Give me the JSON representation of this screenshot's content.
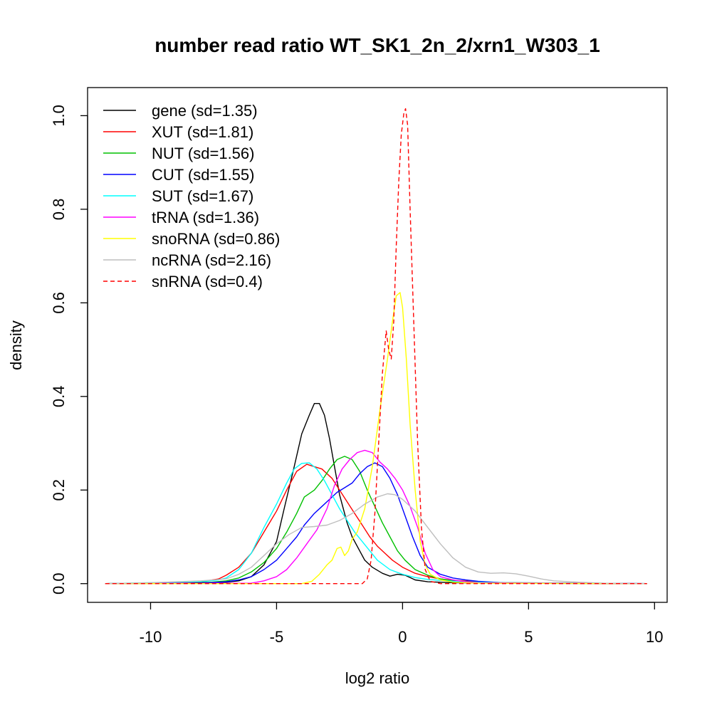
{
  "chart_data": {
    "type": "line",
    "title": "number read ratio WT_SK1_2n_2/xrn1_W303_1",
    "xlabel": "log2 ratio",
    "ylabel": "density",
    "xlim": [
      -12.5,
      10.5
    ],
    "ylim": [
      -0.04,
      1.06
    ],
    "xticks": [
      -10,
      -5,
      0,
      5,
      10
    ],
    "xtick_labels": [
      "-10",
      "-5",
      "0",
      "5",
      "10"
    ],
    "yticks": [
      0.0,
      0.2,
      0.4,
      0.6,
      0.8,
      1.0
    ],
    "ytick_labels": [
      "0.0",
      "0.2",
      "0.4",
      "0.6",
      "0.8",
      "1.0"
    ],
    "grid": false,
    "legend_position": "top-left",
    "series": [
      {
        "name": "gene (sd=1.35)",
        "color": "#000000",
        "dash": false,
        "points": [
          [
            -11.8,
            0
          ],
          [
            -9,
            0.002
          ],
          [
            -7,
            0.003
          ],
          [
            -6.5,
            0.006
          ],
          [
            -6,
            0.015
          ],
          [
            -5.5,
            0.04
          ],
          [
            -5,
            0.09
          ],
          [
            -4.7,
            0.16
          ],
          [
            -4.3,
            0.25
          ],
          [
            -4,
            0.32
          ],
          [
            -3.7,
            0.36
          ],
          [
            -3.5,
            0.385
          ],
          [
            -3.3,
            0.385
          ],
          [
            -3.1,
            0.36
          ],
          [
            -2.9,
            0.31
          ],
          [
            -2.7,
            0.25
          ],
          [
            -2.5,
            0.19
          ],
          [
            -2.2,
            0.13
          ],
          [
            -2,
            0.1
          ],
          [
            -1.7,
            0.07
          ],
          [
            -1.5,
            0.05
          ],
          [
            -1.2,
            0.035
          ],
          [
            -0.8,
            0.022
          ],
          [
            -0.5,
            0.016
          ],
          [
            -0.2,
            0.02
          ],
          [
            0.1,
            0.018
          ],
          [
            0.5,
            0.008
          ],
          [
            1,
            0.004
          ],
          [
            2,
            0.002
          ],
          [
            4,
            0.001
          ],
          [
            9.7,
            0
          ]
        ]
      },
      {
        "name": "XUT (sd=1.81)",
        "color": "#ff0000",
        "dash": false,
        "points": [
          [
            -11.8,
            0
          ],
          [
            -9,
            0.002
          ],
          [
            -8,
            0.004
          ],
          [
            -7.3,
            0.01
          ],
          [
            -7,
            0.018
          ],
          [
            -6.5,
            0.035
          ],
          [
            -6,
            0.065
          ],
          [
            -5.5,
            0.11
          ],
          [
            -5,
            0.155
          ],
          [
            -4.6,
            0.2
          ],
          [
            -4.2,
            0.24
          ],
          [
            -3.8,
            0.255
          ],
          [
            -3.5,
            0.25
          ],
          [
            -3.2,
            0.245
          ],
          [
            -2.8,
            0.225
          ],
          [
            -2.5,
            0.2
          ],
          [
            -2.2,
            0.175
          ],
          [
            -1.9,
            0.15
          ],
          [
            -1.6,
            0.125
          ],
          [
            -1.3,
            0.1
          ],
          [
            -1,
            0.08
          ],
          [
            -0.7,
            0.065
          ],
          [
            -0.4,
            0.05
          ],
          [
            0,
            0.035
          ],
          [
            0.5,
            0.022
          ],
          [
            1,
            0.015
          ],
          [
            1.5,
            0.01
          ],
          [
            2,
            0.007
          ],
          [
            3,
            0.004
          ],
          [
            4,
            0.002
          ],
          [
            6,
            0.001
          ],
          [
            9.7,
            0
          ]
        ]
      },
      {
        "name": "NUT (sd=1.56)",
        "color": "#00c000",
        "dash": false,
        "points": [
          [
            -11.8,
            0
          ],
          [
            -8,
            0.001
          ],
          [
            -7,
            0.006
          ],
          [
            -6.5,
            0.012
          ],
          [
            -6,
            0.025
          ],
          [
            -5.5,
            0.045
          ],
          [
            -5,
            0.075
          ],
          [
            -4.6,
            0.11
          ],
          [
            -4.2,
            0.15
          ],
          [
            -3.9,
            0.185
          ],
          [
            -3.5,
            0.2
          ],
          [
            -3.2,
            0.22
          ],
          [
            -2.9,
            0.245
          ],
          [
            -2.6,
            0.265
          ],
          [
            -2.3,
            0.272
          ],
          [
            -2,
            0.265
          ],
          [
            -1.7,
            0.24
          ],
          [
            -1.4,
            0.2
          ],
          [
            -1.1,
            0.165
          ],
          [
            -0.8,
            0.13
          ],
          [
            -0.5,
            0.1
          ],
          [
            -0.2,
            0.07
          ],
          [
            0.1,
            0.05
          ],
          [
            0.5,
            0.03
          ],
          [
            1,
            0.018
          ],
          [
            1.5,
            0.01
          ],
          [
            2,
            0.006
          ],
          [
            3,
            0.003
          ],
          [
            4,
            0.002
          ],
          [
            9.7,
            0
          ]
        ]
      },
      {
        "name": "CUT (sd=1.55)",
        "color": "#0000ff",
        "dash": false,
        "points": [
          [
            -11.8,
            0
          ],
          [
            -8,
            0.001
          ],
          [
            -7,
            0.004
          ],
          [
            -6.5,
            0.008
          ],
          [
            -6,
            0.015
          ],
          [
            -5.5,
            0.03
          ],
          [
            -5,
            0.05
          ],
          [
            -4.6,
            0.075
          ],
          [
            -4.2,
            0.1
          ],
          [
            -3.9,
            0.125
          ],
          [
            -3.5,
            0.15
          ],
          [
            -3.2,
            0.165
          ],
          [
            -2.9,
            0.18
          ],
          [
            -2.6,
            0.195
          ],
          [
            -2.3,
            0.205
          ],
          [
            -2,
            0.215
          ],
          [
            -1.7,
            0.235
          ],
          [
            -1.4,
            0.25
          ],
          [
            -1.1,
            0.258
          ],
          [
            -0.8,
            0.25
          ],
          [
            -0.5,
            0.225
          ],
          [
            -0.2,
            0.19
          ],
          [
            0.1,
            0.145
          ],
          [
            0.4,
            0.1
          ],
          [
            0.7,
            0.06
          ],
          [
            1,
            0.035
          ],
          [
            1.5,
            0.02
          ],
          [
            2,
            0.012
          ],
          [
            2.5,
            0.008
          ],
          [
            3,
            0.005
          ],
          [
            4,
            0.002
          ],
          [
            9.7,
            0
          ]
        ]
      },
      {
        "name": "SUT (sd=1.67)",
        "color": "#00ffff",
        "dash": false,
        "points": [
          [
            -11.8,
            0
          ],
          [
            -9,
            0.003
          ],
          [
            -8,
            0.004
          ],
          [
            -7.3,
            0.008
          ],
          [
            -7,
            0.012
          ],
          [
            -6.5,
            0.03
          ],
          [
            -6,
            0.065
          ],
          [
            -5.5,
            0.12
          ],
          [
            -5,
            0.17
          ],
          [
            -4.6,
            0.215
          ],
          [
            -4.3,
            0.245
          ],
          [
            -4,
            0.257
          ],
          [
            -3.7,
            0.258
          ],
          [
            -3.4,
            0.245
          ],
          [
            -3.1,
            0.22
          ],
          [
            -2.8,
            0.19
          ],
          [
            -2.5,
            0.16
          ],
          [
            -2.2,
            0.135
          ],
          [
            -1.9,
            0.11
          ],
          [
            -1.6,
            0.09
          ],
          [
            -1.3,
            0.07
          ],
          [
            -1,
            0.05
          ],
          [
            -0.5,
            0.03
          ],
          [
            0,
            0.02
          ],
          [
            0.5,
            0.013
          ],
          [
            1,
            0.009
          ],
          [
            2,
            0.005
          ],
          [
            3,
            0.003
          ],
          [
            4,
            0.002
          ],
          [
            9.7,
            0
          ]
        ]
      },
      {
        "name": "tRNA (sd=1.36)",
        "color": "#ff00ff",
        "dash": false,
        "points": [
          [
            -11.8,
            0
          ],
          [
            -6,
            0.001
          ],
          [
            -5.5,
            0.006
          ],
          [
            -5,
            0.015
          ],
          [
            -4.6,
            0.03
          ],
          [
            -4.2,
            0.055
          ],
          [
            -3.8,
            0.085
          ],
          [
            -3.4,
            0.115
          ],
          [
            -3,
            0.16
          ],
          [
            -2.7,
            0.21
          ],
          [
            -2.4,
            0.245
          ],
          [
            -2.1,
            0.265
          ],
          [
            -1.8,
            0.28
          ],
          [
            -1.5,
            0.285
          ],
          [
            -1.2,
            0.28
          ],
          [
            -0.9,
            0.26
          ],
          [
            -0.6,
            0.245
          ],
          [
            -0.3,
            0.225
          ],
          [
            0,
            0.2
          ],
          [
            0.3,
            0.165
          ],
          [
            0.6,
            0.12
          ],
          [
            0.9,
            0.065
          ],
          [
            1.2,
            0.03
          ],
          [
            1.5,
            0.015
          ],
          [
            2,
            0.008
          ],
          [
            2.5,
            0.004
          ],
          [
            3,
            0.002
          ],
          [
            9.7,
            0
          ]
        ]
      },
      {
        "name": "snoRNA (sd=0.86)",
        "color": "#ffff00",
        "dash": false,
        "points": [
          [
            -11.8,
            0
          ],
          [
            -4,
            0
          ],
          [
            -3.6,
            0.005
          ],
          [
            -3.3,
            0.02
          ],
          [
            -3,
            0.04
          ],
          [
            -2.8,
            0.05
          ],
          [
            -2.6,
            0.075
          ],
          [
            -2.45,
            0.078
          ],
          [
            -2.3,
            0.06
          ],
          [
            -2.15,
            0.07
          ],
          [
            -2,
            0.095
          ],
          [
            -1.8,
            0.11
          ],
          [
            -1.5,
            0.16
          ],
          [
            -1.2,
            0.25
          ],
          [
            -0.9,
            0.37
          ],
          [
            -0.6,
            0.48
          ],
          [
            -0.4,
            0.56
          ],
          [
            -0.25,
            0.615
          ],
          [
            -0.1,
            0.622
          ],
          [
            0,
            0.59
          ],
          [
            0.15,
            0.48
          ],
          [
            0.3,
            0.34
          ],
          [
            0.5,
            0.2
          ],
          [
            0.7,
            0.09
          ],
          [
            0.9,
            0.04
          ],
          [
            1.1,
            0.02
          ],
          [
            1.5,
            0.008
          ],
          [
            2,
            0.003
          ],
          [
            3,
            0.001
          ],
          [
            9.7,
            0
          ]
        ]
      },
      {
        "name": "ncRNA (sd=2.16)",
        "color": "#bebebe",
        "dash": false,
        "points": [
          [
            -11.8,
            0
          ],
          [
            -10,
            0.002
          ],
          [
            -9,
            0.004
          ],
          [
            -8,
            0.006
          ],
          [
            -7,
            0.01
          ],
          [
            -6.5,
            0.02
          ],
          [
            -6,
            0.035
          ],
          [
            -5.5,
            0.06
          ],
          [
            -5,
            0.085
          ],
          [
            -4.5,
            0.105
          ],
          [
            -4,
            0.12
          ],
          [
            -3.5,
            0.122
          ],
          [
            -3,
            0.125
          ],
          [
            -2.5,
            0.135
          ],
          [
            -2,
            0.15
          ],
          [
            -1.5,
            0.17
          ],
          [
            -1,
            0.185
          ],
          [
            -0.6,
            0.192
          ],
          [
            -0.3,
            0.19
          ],
          [
            0,
            0.18
          ],
          [
            0.5,
            0.155
          ],
          [
            1,
            0.12
          ],
          [
            1.5,
            0.085
          ],
          [
            2,
            0.055
          ],
          [
            2.5,
            0.035
          ],
          [
            3,
            0.025
          ],
          [
            3.5,
            0.022
          ],
          [
            4,
            0.023
          ],
          [
            4.5,
            0.021
          ],
          [
            5,
            0.016
          ],
          [
            5.5,
            0.01
          ],
          [
            6,
            0.006
          ],
          [
            7,
            0.003
          ],
          [
            8,
            0.001
          ],
          [
            9.7,
            0
          ]
        ]
      },
      {
        "name": "snRNA (sd=0.4)",
        "color": "#ff0000",
        "dash": true,
        "points": [
          [
            -11.8,
            0
          ],
          [
            -1.6,
            0
          ],
          [
            -1.4,
            0.01
          ],
          [
            -1.25,
            0.05
          ],
          [
            -1.1,
            0.15
          ],
          [
            -0.95,
            0.3
          ],
          [
            -0.8,
            0.45
          ],
          [
            -0.65,
            0.54
          ],
          [
            -0.55,
            0.5
          ],
          [
            -0.45,
            0.48
          ],
          [
            -0.35,
            0.56
          ],
          [
            -0.25,
            0.72
          ],
          [
            -0.15,
            0.86
          ],
          [
            -0.05,
            0.96
          ],
          [
            0.05,
            1.005
          ],
          [
            0.12,
            1.015
          ],
          [
            0.2,
            0.98
          ],
          [
            0.3,
            0.8
          ],
          [
            0.45,
            0.55
          ],
          [
            0.6,
            0.3
          ],
          [
            0.75,
            0.12
          ],
          [
            0.9,
            0.03
          ],
          [
            1.1,
            0.005
          ],
          [
            1.5,
            0
          ],
          [
            9.7,
            0
          ]
        ]
      }
    ]
  }
}
